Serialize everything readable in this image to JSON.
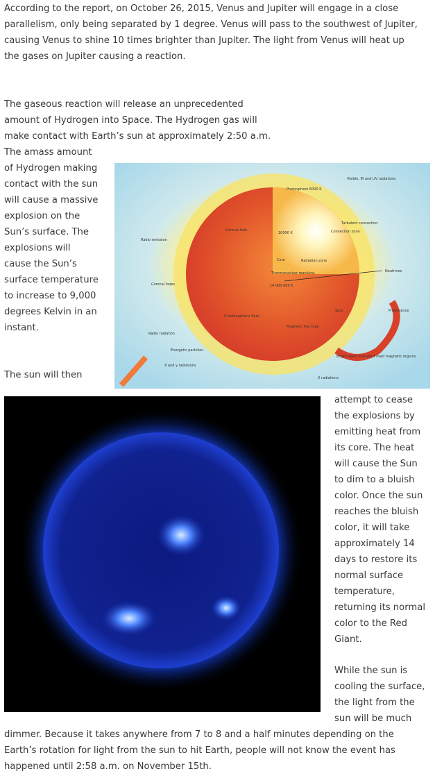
{
  "paragraphs": {
    "p1": [
      "According to the report, on October 26, 2015, Venus and Jupiter will engage in a close",
      "parallelism, only being separated by 1 degree. Venus will pass to the southwest of Jupiter,",
      "causing Venus to shine 10 times brighter than Jupiter. The light from Venus will heat up",
      "the gases on Jupiter causing a reaction."
    ],
    "p2_top": [
      "The gaseous reaction will release an unprecedented",
      "amount of Hydrogen into Space. The Hydrogen gas will",
      "make contact with Earth’s sun at approximately 2:50 a.m."
    ],
    "p2_left": [
      "The amass amount",
      "of Hydrogen making",
      "contact with the sun",
      "will cause a massive",
      "explosion on the",
      "Sun’s surface. The",
      "explosions will",
      "cause the Sun’s",
      "surface temperature",
      "to increase to 9,000",
      "degrees Kelvin in an",
      "instant."
    ],
    "p3_left": [
      "The sun will then"
    ],
    "p3_right": [
      "attempt to cease",
      "the explosions by",
      "emitting heat from",
      "its core. The heat",
      "will cause the Sun",
      "to dim to a bluish",
      "color. Once the sun",
      "reaches the bluish",
      "color, it will take",
      "approximately 14",
      "days to restore its",
      "normal surface",
      "temperature,",
      "returning its normal",
      "color to the Red",
      "Giant."
    ],
    "p4_right": [
      "While the sun is",
      "cooling the surface,",
      "the light from the",
      "sun will be much"
    ],
    "p4_full": [
      "dimmer. Because it takes anywhere from 7 to 8 and a half minutes depending on the",
      "Earth’s rotation for light from the sun to hit Earth, people will not know the event has",
      "happened until 2:58 a.m. on November 15th."
    ]
  },
  "diagram_labels": {
    "visible": "Visible, IR and UV radiations",
    "photosphere": "Photosphere 6000 K",
    "turbulent": "Turbulent convection",
    "convection": "Convection zone",
    "coronal_hole": "Coronal hole",
    "temp_10000": "10000 K",
    "radio_emission": "Radio emission",
    "core": "Core",
    "radiation_zone": "Radiation zone",
    "thermonuclear": "Thermonuclear reactions",
    "neutrinos": "Neutrinos",
    "core_temp": "14 000 000 K",
    "coronal_loops": "Coronal loops",
    "spot": "Spot",
    "prominence": "Prominence",
    "chromospheric": "Chromospheric flare",
    "magnetic": "Magnetic flux tube",
    "radio_radiation": "Radio radiation",
    "energetic": "Energetic particles",
    "bright_spots": "Bright spots and short lived magnetic regions",
    "xray_gamma": "X and γ radiations",
    "xray": "X radiations"
  }
}
